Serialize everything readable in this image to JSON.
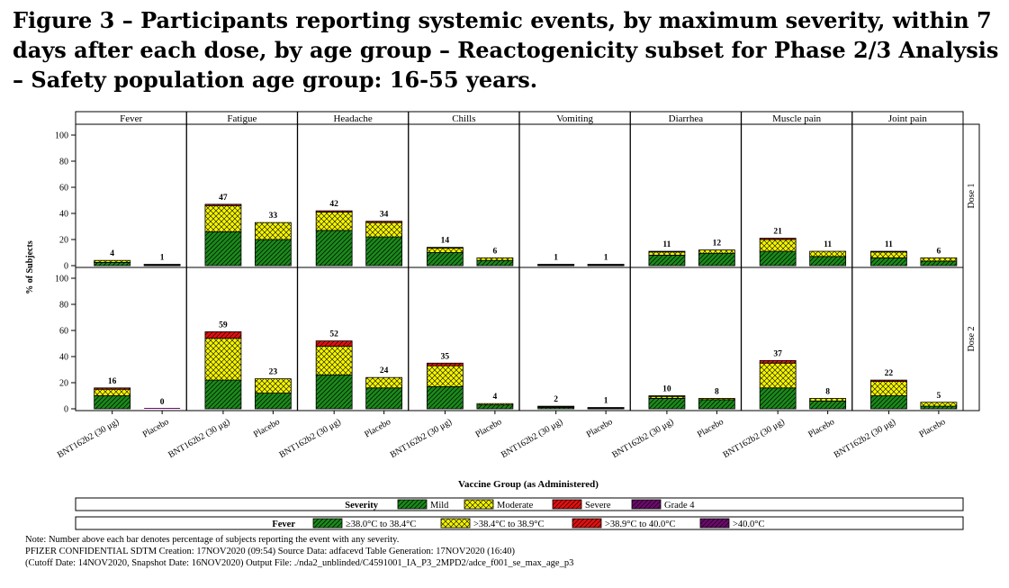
{
  "figure": {
    "title": "Figure 3 – Participants reporting systemic events, by maximum severity, within 7 days after each dose, by age group – Reactogenicity subset for Phase 2/3 Analysis – Safety population age group: 16-55 years."
  },
  "chart_data": {
    "type": "bar",
    "stacked": true,
    "xlabel": "Vaccine Group (as Administered)",
    "ylabel": "% of Subjects",
    "ylim": [
      0,
      100
    ],
    "yticks": [
      0,
      20,
      40,
      60,
      80,
      100
    ],
    "panels": [
      "Fever",
      "Fatigue",
      "Headache",
      "Chills",
      "Vomiting",
      "Diarrhea",
      "Muscle pain",
      "Joint pain"
    ],
    "groups": [
      "BNT162b2 (30 μg)",
      "Placebo"
    ],
    "doses": [
      "Dose 1",
      "Dose 2"
    ],
    "data": [
      [
        [
          [
            2.5,
            1.5,
            0,
            0
          ],
          [
            0.5,
            0.5,
            0,
            0
          ]
        ],
        [
          [
            26,
            20,
            1,
            0
          ],
          [
            20,
            13,
            0,
            0
          ]
        ],
        [
          [
            27,
            14,
            1,
            0
          ],
          [
            22,
            11,
            1,
            0
          ]
        ],
        [
          [
            10,
            3.5,
            0.5,
            0
          ],
          [
            4,
            2,
            0,
            0
          ]
        ],
        [
          [
            0.5,
            0.3,
            0.2,
            0
          ],
          [
            0.5,
            0.3,
            0.2,
            0
          ]
        ],
        [
          [
            8,
            2.5,
            0.5,
            0
          ],
          [
            9.5,
            2.5,
            0,
            0
          ]
        ],
        [
          [
            11,
            9,
            1,
            0
          ],
          [
            7,
            4,
            0,
            0
          ]
        ],
        [
          [
            6,
            4.5,
            0.5,
            0
          ],
          [
            3.5,
            2.5,
            0,
            0
          ]
        ]
      ],
      [
        [
          [
            10,
            5,
            1,
            0
          ],
          [
            0,
            0,
            0,
            0
          ]
        ],
        [
          [
            22,
            32,
            5,
            0
          ],
          [
            12,
            11,
            0,
            0
          ]
        ],
        [
          [
            26,
            22,
            4,
            0
          ],
          [
            16,
            8,
            0,
            0
          ]
        ],
        [
          [
            17,
            16,
            2,
            0
          ],
          [
            3,
            1,
            0,
            0
          ]
        ],
        [
          [
            1,
            0.7,
            0.3,
            0
          ],
          [
            0.5,
            0.3,
            0.2,
            0
          ]
        ],
        [
          [
            8,
            1.5,
            0.5,
            0
          ],
          [
            7,
            1,
            0,
            0
          ]
        ],
        [
          [
            16,
            19,
            2,
            0
          ],
          [
            6,
            2,
            0,
            0
          ]
        ],
        [
          [
            10,
            11,
            1,
            0
          ],
          [
            2,
            3,
            0,
            0
          ]
        ]
      ]
    ],
    "labels": [
      [
        [
          4,
          1
        ],
        [
          47,
          33
        ],
        [
          42,
          34
        ],
        [
          14,
          6
        ],
        [
          1,
          1
        ],
        [
          11,
          12
        ],
        [
          21,
          11
        ],
        [
          11,
          6
        ]
      ],
      [
        [
          16,
          0
        ],
        [
          59,
          23
        ],
        [
          52,
          24
        ],
        [
          35,
          4
        ],
        [
          2,
          1
        ],
        [
          10,
          8
        ],
        [
          37,
          8
        ],
        [
          22,
          5
        ]
      ]
    ],
    "colors": {
      "mild": "#1a8a1a",
      "moderate": "#f4f400",
      "severe": "#e01010",
      "grade4": "#6a0a6a",
      "hatch": "#000000"
    },
    "legend_severity": {
      "title": "Severity",
      "items": [
        "Mild",
        "Moderate",
        "Severe",
        "Grade 4"
      ]
    },
    "legend_fever": {
      "title": "Fever",
      "items": [
        "≥38.0°C to 38.4°C",
        ">38.4°C to 38.9°C",
        ">38.9°C to 40.0°C",
        ">40.0°C"
      ]
    }
  },
  "notes": {
    "line1": "Note: Number above each bar denotes percentage of subjects reporting the event with any severity.",
    "line2": "PFIZER CONFIDENTIAL SDTM Creation: 17NOV2020 (09:54) Source Data: adfacevd Table Generation: 17NOV2020 (16:40)",
    "line3": "(Cutoff Date: 14NOV2020, Snapshot Date: 16NOV2020) Output File: ./nda2_unblinded/C4591001_IA_P3_2MPD2/adce_f001_se_max_age_p3"
  }
}
